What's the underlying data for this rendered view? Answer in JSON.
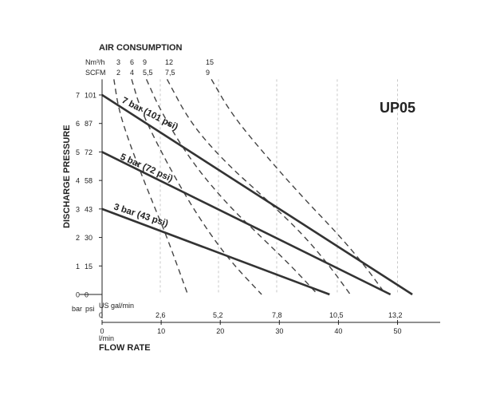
{
  "chart_data": {
    "type": "line",
    "model": "UP05",
    "air_consumption": {
      "title": "AIR CONSUMPTION",
      "unit_nm3h": "Nm³/h",
      "unit_scfm": "SCFM",
      "nm3h_labels": [
        "3",
        "6",
        "9",
        "12",
        "15"
      ],
      "scfm_labels": [
        "2",
        "4",
        "5,5",
        "7,5",
        "9"
      ]
    },
    "y_axis": {
      "title": "DISCHARGE PRESSURE",
      "unit_bar": "bar",
      "unit_psi": "psi",
      "bar_ticks": [
        "0",
        "1",
        "2",
        "3",
        "4",
        "5",
        "6",
        "7"
      ],
      "psi_ticks": [
        "0",
        "15",
        "30",
        "43",
        "58",
        "72",
        "87",
        "101"
      ],
      "ylim": [
        0,
        7
      ]
    },
    "x_axis": {
      "title": "FLOW RATE",
      "unit_gpm": "US gal/min",
      "unit_lmin": "l/min",
      "gpm_ticks": [
        "0",
        "2,6",
        "5,2",
        "7,8",
        "10,5",
        "13,2"
      ],
      "lmin_ticks": [
        "0",
        "10",
        "20",
        "30",
        "40",
        "50"
      ],
      "xlim": [
        0,
        50
      ]
    },
    "series": [
      {
        "name": "7 bar (101 psi)",
        "x": [
          0,
          52.5
        ],
        "y": [
          7,
          0
        ]
      },
      {
        "name": "5 bar (72 psi)",
        "x": [
          0,
          48.8
        ],
        "y": [
          5,
          0
        ]
      },
      {
        "name": "3 bar (43 psi)",
        "x": [
          0,
          38.5
        ],
        "y": [
          3,
          0
        ]
      }
    ],
    "air_curves": [
      {
        "nm3h": "3",
        "x": [
          2.0,
          2.8,
          4.5,
          6.5,
          9.0,
          11.0,
          14.5
        ],
        "y": [
          7.55,
          6.5,
          5.4,
          4.3,
          3.0,
          2.0,
          0
        ]
      },
      {
        "nm3h": "6",
        "x": [
          5.0,
          6.5,
          10.0,
          14.0,
          18.0,
          22.0,
          27.0
        ],
        "y": [
          7.55,
          6.5,
          5.0,
          3.5,
          2.2,
          1.1,
          0
        ]
      },
      {
        "nm3h": "9",
        "x": [
          7.5,
          10.0,
          15.0,
          21.0,
          27.0,
          32.0,
          36.5
        ],
        "y": [
          7.55,
          6.4,
          4.7,
          3.2,
          2.0,
          1.0,
          0
        ]
      },
      {
        "nm3h": "12",
        "x": [
          11.0,
          15.0,
          21.0,
          28.0,
          34.0,
          38.5,
          42.0
        ],
        "y": [
          7.55,
          6.0,
          4.6,
          3.3,
          2.1,
          1.0,
          0
        ]
      },
      {
        "nm3h": "15",
        "x": [
          18.5,
          22.0,
          28.0,
          34.0,
          40.0,
          44.5,
          48.0
        ],
        "y": [
          7.55,
          6.3,
          4.8,
          3.4,
          2.1,
          1.0,
          0
        ]
      }
    ],
    "grid": false
  }
}
